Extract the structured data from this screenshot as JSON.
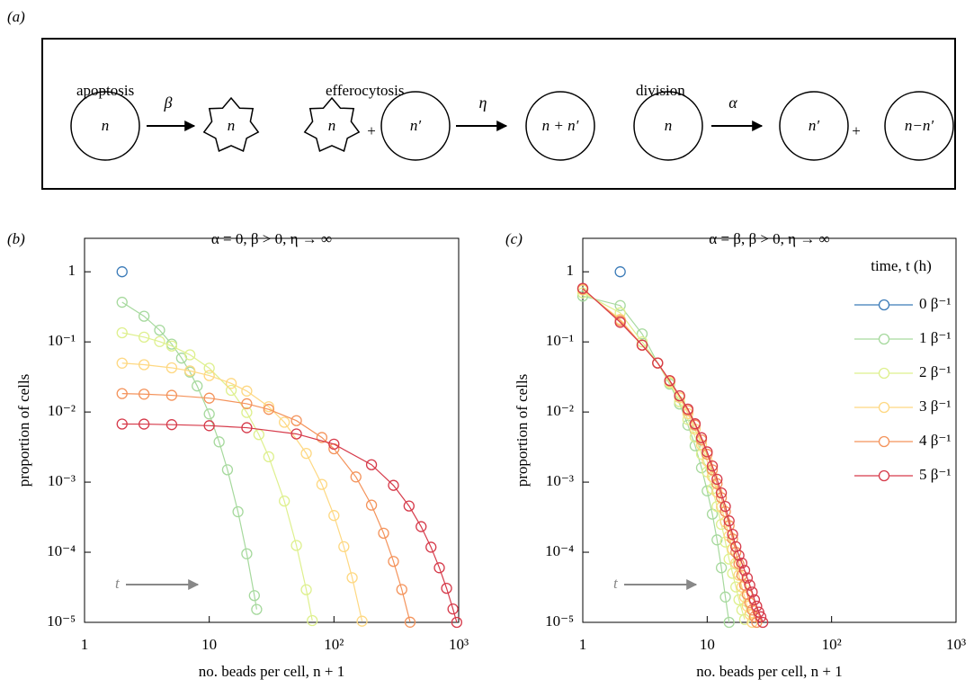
{
  "diagram": {
    "panel_label": "(a)",
    "processes": [
      {
        "name": "apoptosis",
        "rate": "β",
        "states": [
          "n",
          "n"
        ]
      },
      {
        "name": "efferocytosis",
        "rate": "η",
        "states": [
          "n",
          "n′",
          "n + n′"
        ],
        "operator": "+"
      },
      {
        "name": "division",
        "rate": "α",
        "states": [
          "n",
          "n′",
          "n−n′"
        ],
        "operator": "+"
      }
    ]
  },
  "chart_data": [
    {
      "type": "line",
      "panel_label": "(b)",
      "title": "α = 0, β > 0, η → ∞",
      "xlabel": "no. beads per cell, n + 1",
      "ylabel": "proportion of cells",
      "xscale": "log",
      "yscale": "log",
      "xlim": [
        1,
        1000
      ],
      "ylim": [
        1e-05,
        3
      ],
      "xticks": [
        1,
        10,
        {
          "value": 100,
          "label": "10²"
        },
        {
          "value": 1000,
          "label": "10³"
        }
      ],
      "yticks": [
        {
          "value": 1e-05,
          "label": "10⁻⁵"
        },
        {
          "value": 0.0001,
          "label": "10⁻⁴"
        },
        {
          "value": 0.001,
          "label": "10⁻³"
        },
        {
          "value": 0.01,
          "label": "10⁻²"
        },
        {
          "value": 0.1,
          "label": "10⁻¹"
        },
        1
      ],
      "annotation": "t",
      "legend": false,
      "series": [
        {
          "color": "#3b7bb8",
          "x": [
            2
          ],
          "values": [
            1
          ]
        },
        {
          "color": "#a6d99d",
          "x": [
            2,
            3,
            4,
            5,
            6,
            7,
            8,
            10,
            12,
            14,
            17,
            20,
            23,
            24
          ],
          "values": [
            0.368,
            0.2325,
            0.147,
            0.0929,
            0.0587,
            0.0371,
            0.0235,
            0.00937,
            0.00375,
            0.0015,
            0.000378,
            9.5e-05,
            2.41e-05,
            1.53e-05
          ]
        },
        {
          "color": "#def08e",
          "x": [
            2,
            3,
            4,
            5,
            7,
            10,
            15,
            20,
            25,
            30,
            40,
            50,
            60,
            67
          ],
          "values": [
            0.135,
            0.117,
            0.1011,
            0.0874,
            0.0654,
            0.0422,
            0.0204,
            0.00986,
            0.00476,
            0.0023,
            0.000537,
            0.000125,
            2.92e-05,
            1.06e-05
          ]
        },
        {
          "color": "#fed882",
          "x": [
            2,
            3,
            5,
            7,
            10,
            15,
            20,
            30,
            40,
            60,
            80,
            100,
            120,
            140,
            168
          ],
          "values": [
            0.0498,
            0.0473,
            0.0427,
            0.0386,
            0.0331,
            0.0256,
            0.0199,
            0.0119,
            0.00715,
            0.00257,
            0.000927,
            0.000334,
            0.00012,
            4.33e-05,
            1.04e-05
          ]
        },
        {
          "color": "#f4935b",
          "x": [
            2,
            3,
            5,
            10,
            20,
            30,
            50,
            80,
            100,
            150,
            200,
            250,
            300,
            350,
            408
          ],
          "values": [
            0.0183,
            0.01797,
            0.01731,
            0.01578,
            0.01312,
            0.0109,
            0.00753,
            0.00433,
            0.00299,
            0.001186,
            0.00047,
            0.000187,
            7.4e-05,
            2.94e-05,
            1.006e-05
          ]
        },
        {
          "color": "#d63a4a",
          "x": [
            2,
            3,
            5,
            10,
            20,
            50,
            100,
            200,
            300,
            400,
            500,
            600,
            700,
            800,
            900,
            965
          ],
          "values": [
            0.00674,
            0.00672,
            0.0066,
            0.00638,
            0.00597,
            0.00487,
            0.00348,
            0.00177,
            0.000899,
            0.000457,
            0.000232,
            0.000118,
            6e-05,
            3.06e-05,
            1.55e-05,
            1e-05
          ]
        }
      ]
    },
    {
      "type": "line",
      "panel_label": "(c)",
      "title": "α = β, β > 0, η → ∞",
      "xlabel": "no. beads per cell, n + 1",
      "ylabel": "proportion of cells",
      "xscale": "log",
      "yscale": "log",
      "xlim": [
        1,
        1000
      ],
      "ylim": [
        1e-05,
        3
      ],
      "xticks": [
        1,
        10,
        {
          "value": 100,
          "label": "10²"
        },
        {
          "value": 1000,
          "label": "10³"
        }
      ],
      "yticks": [
        {
          "value": 1e-05,
          "label": "10⁻⁵"
        },
        {
          "value": 0.0001,
          "label": "10⁻⁴"
        },
        {
          "value": 0.001,
          "label": "10⁻³"
        },
        {
          "value": 0.01,
          "label": "10⁻²"
        },
        {
          "value": 0.1,
          "label": "10⁻¹"
        },
        1
      ],
      "annotation": "t",
      "legend": true,
      "legend_title": "time, t (h)",
      "legend_loc": "upper right",
      "series": [
        {
          "name": "0 β⁻¹",
          "color": "#3b7bb8",
          "x": [
            2
          ],
          "values": [
            1
          ]
        },
        {
          "name": "1 β⁻¹",
          "color": "#a6d99d",
          "x": [
            1,
            2,
            3,
            4,
            5,
            6,
            7,
            8,
            9,
            10,
            11,
            12,
            13,
            14,
            15
          ],
          "values": [
            0.45,
            0.33,
            0.13,
            0.05,
            0.025,
            0.013,
            0.0065,
            0.0033,
            0.0016,
            0.00075,
            0.00035,
            0.00015,
            6e-05,
            2.3e-05,
            1e-05
          ]
        },
        {
          "name": "2 β⁻¹",
          "color": "#def08e",
          "x": [
            1,
            2,
            3,
            4,
            5,
            6,
            7,
            8,
            9,
            10,
            11,
            12,
            13,
            14,
            15,
            16,
            17,
            18,
            19,
            20
          ],
          "values": [
            0.5,
            0.26,
            0.1,
            0.05,
            0.026,
            0.014,
            0.0078,
            0.0044,
            0.0025,
            0.0014,
            0.0008,
            0.00045,
            0.00025,
            0.00014,
            8e-05,
            5e-05,
            3.2e-05,
            2.1e-05,
            1.5e-05,
            1.1e-05
          ]
        },
        {
          "name": "3 β⁻¹",
          "color": "#fed882",
          "x": [
            1,
            2,
            3,
            4,
            5,
            6,
            7,
            8,
            9,
            10,
            11,
            12,
            13,
            14,
            15,
            16,
            17,
            18,
            19,
            20,
            21,
            22,
            23
          ],
          "values": [
            0.55,
            0.21,
            0.09,
            0.05,
            0.027,
            0.016,
            0.0095,
            0.0057,
            0.0034,
            0.002,
            0.0012,
            0.00072,
            0.00044,
            0.00027,
            0.00017,
            0.00011,
            7e-05,
            4.7e-05,
            3.2e-05,
            2.3e-05,
            1.7e-05,
            1.3e-05,
            1e-05
          ]
        },
        {
          "name": "4 β⁻¹",
          "color": "#f4935b",
          "x": [
            1,
            2,
            3,
            4,
            5,
            6,
            7,
            8,
            9,
            10,
            11,
            12,
            13,
            14,
            15,
            16,
            17,
            18,
            19,
            20,
            21,
            22,
            23,
            24,
            25
          ],
          "values": [
            0.57,
            0.2,
            0.09,
            0.05,
            0.028,
            0.017,
            0.0105,
            0.0065,
            0.004,
            0.0025,
            0.0015,
            0.00095,
            0.0006,
            0.00038,
            0.00024,
            0.000155,
            0.0001,
            6.8e-05,
            4.7e-05,
            3.4e-05,
            2.5e-05,
            1.9e-05,
            1.5e-05,
            1.2e-05,
            1e-05
          ]
        },
        {
          "name": "5 β⁻¹",
          "color": "#d63a4a",
          "x": [
            1,
            2,
            3,
            4,
            5,
            6,
            7,
            8,
            9,
            10,
            11,
            12,
            13,
            14,
            15,
            16,
            17,
            18,
            19,
            20,
            21,
            22,
            23,
            24,
            25,
            26,
            27,
            28
          ],
          "values": [
            0.58,
            0.19,
            0.09,
            0.05,
            0.028,
            0.017,
            0.011,
            0.0068,
            0.0043,
            0.0027,
            0.0017,
            0.0011,
            0.0007,
            0.00045,
            0.00028,
            0.00018,
            0.00012,
            9e-05,
            7e-05,
            5.5e-05,
            4.3e-05,
            3.4e-05,
            2.7e-05,
            2.1e-05,
            1.7e-05,
            1.4e-05,
            1.2e-05,
            1e-05
          ]
        }
      ]
    }
  ]
}
